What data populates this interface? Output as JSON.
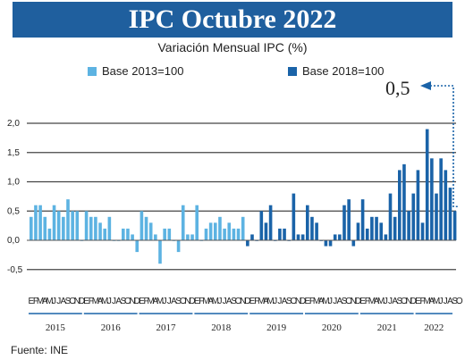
{
  "title": "IPC Octubre 2022",
  "subtitle": "Variación Mensual IPC (%)",
  "source": "Fuente: INE",
  "callout": "0,5",
  "colors": {
    "base2013": "#5db3e2",
    "base2018": "#1a63a8",
    "title_bg": "#1f5f9e"
  },
  "chart_data": {
    "type": "bar",
    "ylim": [
      -0.5,
      2.0
    ],
    "yticks": [
      "2,0",
      "1,5",
      "1,0",
      "0,5",
      "0,0",
      "-0,5"
    ],
    "ytick_values": [
      2.0,
      1.5,
      1.0,
      0.5,
      0.0,
      -0.5
    ],
    "month_letters": [
      "E",
      "F",
      "M",
      "A",
      "M",
      "J",
      "J",
      "A",
      "S",
      "O",
      "N",
      "D"
    ],
    "years": [
      "2015",
      "2016",
      "2017",
      "2018",
      "2019",
      "2020",
      "2021",
      "2022"
    ],
    "series": [
      {
        "name": "Base 2013=100",
        "start": "2015-01",
        "values": [
          0.4,
          0.6,
          0.6,
          0.4,
          0.2,
          0.6,
          0.5,
          0.4,
          0.7,
          0.5,
          0.5,
          0.0,
          0.5,
          0.4,
          0.4,
          0.3,
          0.2,
          0.4,
          0.0,
          0.0,
          0.2,
          0.2,
          0.1,
          -0.2,
          0.5,
          0.4,
          0.3,
          0.1,
          -0.4,
          0.2,
          0.2,
          0.0,
          -0.2,
          0.6,
          0.1,
          0.1,
          0.6,
          0.0,
          0.2,
          0.3,
          0.3,
          0.4,
          0.2,
          0.3,
          0.2,
          0.2,
          0.4
        ]
      },
      {
        "name": "Base 2018=100",
        "start": "2018-12",
        "values": [
          -0.1,
          0.1,
          0.0,
          0.5,
          0.3,
          0.6,
          0.0,
          0.2,
          0.2,
          0.0,
          0.8,
          0.1,
          0.1,
          0.6,
          0.4,
          0.3,
          0.0,
          -0.1,
          -0.1,
          0.1,
          0.1,
          0.6,
          0.7,
          -0.1,
          0.3,
          0.7,
          0.2,
          0.4,
          0.4,
          0.3,
          0.1,
          0.8,
          0.4,
          1.2,
          1.3,
          0.5,
          0.8,
          1.2,
          0.3,
          1.9,
          1.4,
          0.8,
          1.4,
          1.2,
          0.9,
          0.5
        ]
      }
    ],
    "legend": "top"
  }
}
